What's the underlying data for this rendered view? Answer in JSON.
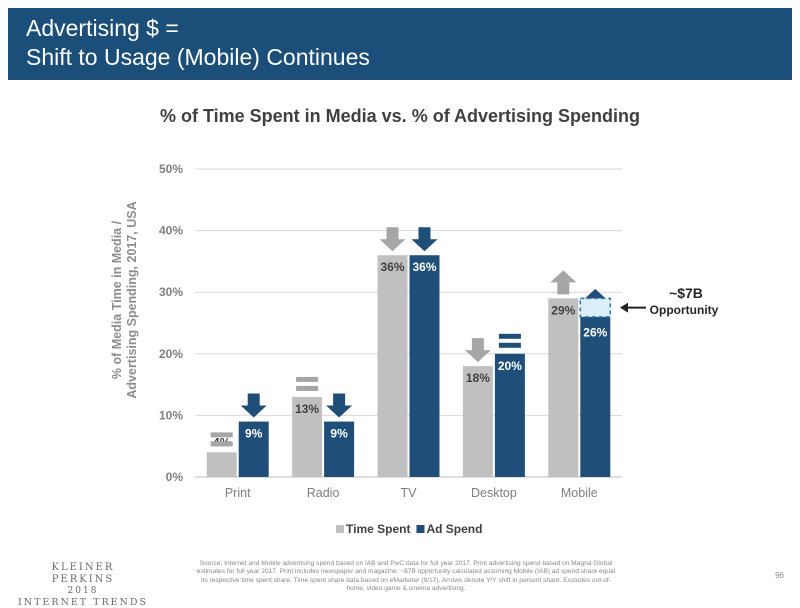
{
  "header": {
    "title_line1": "Advertising $ =",
    "title_line2": "Shift to Usage (Mobile) Continues"
  },
  "colors": {
    "header_bg": "#1b4f7a",
    "time_spent": "#c0c0c0",
    "ad_spend": "#1f4e79",
    "opportunity_fill": "#dbeef9",
    "opportunity_border": "#2e75b6",
    "text_gray": "#808080"
  },
  "chart_data": {
    "type": "bar",
    "title": "% of Time Spent in Media vs. % of Advertising Spending",
    "ylabel_line1": "% of Media Time in Media /",
    "ylabel_line2": "Advertising Spending, 2017, USA",
    "categories": [
      "Print",
      "Radio",
      "TV",
      "Desktop",
      "Mobile"
    ],
    "series": [
      {
        "name": "Time Spent",
        "values": [
          4,
          13,
          36,
          18,
          29
        ],
        "labels": [
          "4%",
          "13%",
          "36%",
          "18%",
          "29%"
        ]
      },
      {
        "name": "Ad Spend",
        "values": [
          9,
          9,
          36,
          20,
          26
        ],
        "labels": [
          "9%",
          "9%",
          "36%",
          "20%",
          "26%"
        ]
      }
    ],
    "ylim": [
      0,
      50
    ],
    "yticks": [
      0,
      10,
      20,
      30,
      40,
      50
    ],
    "ytick_labels": [
      "0%",
      "10%",
      "20%",
      "30%",
      "40%",
      "50%"
    ],
    "grid": true,
    "legend_position": "bottom",
    "yoy_shift_icons": {
      "time_spent": [
        "flat",
        "flat",
        "down",
        "down",
        "up"
      ],
      "ad_spend": [
        "down",
        "down",
        "down",
        "flat",
        "up"
      ]
    },
    "opportunity": {
      "category": "Mobile",
      "from_value": 26,
      "to_value": 29,
      "label_line1": "~$7B",
      "label_line2": "Opportunity"
    }
  },
  "footer": {
    "logo_line1": "KLEINER PERKINS",
    "logo_line2": "2018",
    "logo_line3": "INTERNET TRENDS",
    "source_text": "Source: Internet and Mobile advertising spend based on IAB and PwC data for full year 2017. Print advertising spend based on Magna Global estimates for full year 2017. Print includes newspaper and magazine. ~$7B opportunity calculated assuming Mobile (IAB) ad spend share equal its respective time spent share. Time spent share data based on eMarketer (9/17). Arrows denote Y/Y shift in percent share. Excludes out-of-home, video game & cinema advertising.",
    "page_number": "96"
  }
}
